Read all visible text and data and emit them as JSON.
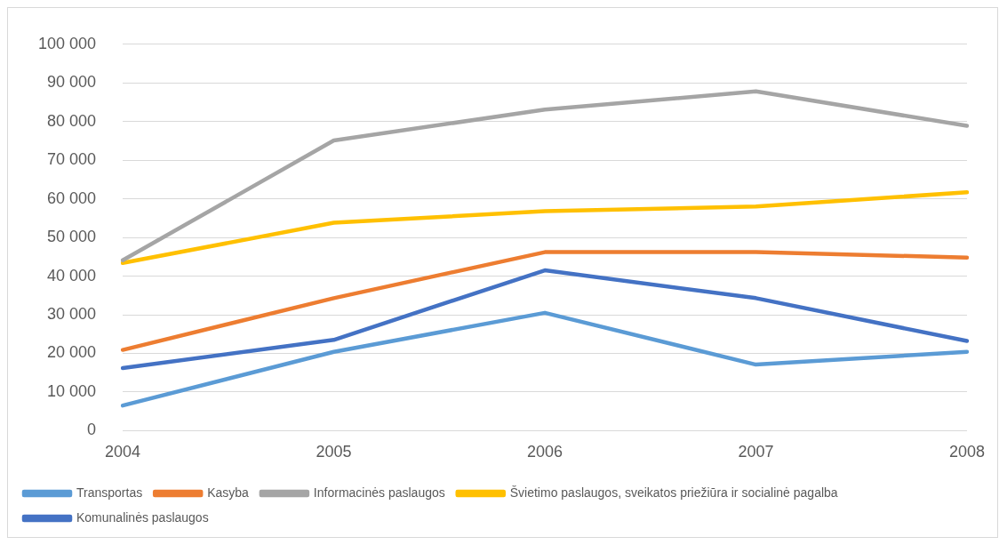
{
  "chart_data": {
    "type": "line",
    "categories": [
      "2004",
      "2005",
      "2006",
      "2007",
      "2008"
    ],
    "series": [
      {
        "name": "Transportas",
        "color": "#5b9bd5",
        "values": [
          6500,
          20400,
          30500,
          17100,
          20400
        ]
      },
      {
        "name": "Kasyba",
        "color": "#ed7d31",
        "values": [
          20900,
          34300,
          46200,
          46200,
          44800
        ]
      },
      {
        "name": "Informacinės paslaugos",
        "color": "#a5a5a5",
        "values": [
          44100,
          75100,
          83100,
          87800,
          78900
        ]
      },
      {
        "name": "Švietimo paslaugos, sveikatos priežiūra ir socialinė pagalba",
        "color": "#ffc000",
        "values": [
          43400,
          53800,
          56800,
          58000,
          61700
        ]
      },
      {
        "name": "Komunalinės paslaugos",
        "color": "#4472c4",
        "values": [
          16200,
          23500,
          41500,
          34300,
          23200
        ]
      }
    ],
    "ylim": [
      0,
      100000
    ],
    "yticks": [
      {
        "value": 0,
        "label": "0"
      },
      {
        "value": 10000,
        "label": "10 000"
      },
      {
        "value": 20000,
        "label": "20 000"
      },
      {
        "value": 30000,
        "label": "30 000"
      },
      {
        "value": 40000,
        "label": "40 000"
      },
      {
        "value": 50000,
        "label": "50 000"
      },
      {
        "value": 60000,
        "label": "60 000"
      },
      {
        "value": 70000,
        "label": "70 000"
      },
      {
        "value": 80000,
        "label": "80 000"
      },
      {
        "value": 90000,
        "label": "90 000"
      },
      {
        "value": 100000,
        "label": "100 000"
      }
    ],
    "grid": "y",
    "legend": "bottom",
    "marker": "none",
    "line_style": "solid"
  }
}
